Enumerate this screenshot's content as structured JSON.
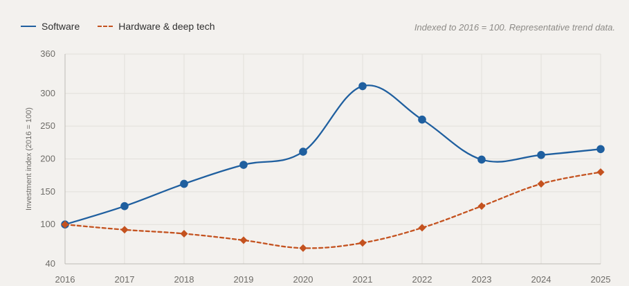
{
  "legend": {
    "software": "Software",
    "hardware": "Hardware & deep tech"
  },
  "note": "Indexed to 2016 = 100. Representative trend data.",
  "colors": {
    "software": "#1f5f9f",
    "hardware": "#c4521f",
    "grid": "#e2dfda",
    "axis": "#bdbab5"
  },
  "chart_data": {
    "type": "line",
    "x": [
      "2016",
      "2017",
      "2018",
      "2019",
      "2020",
      "2021",
      "2022",
      "2023",
      "2024",
      "2025"
    ],
    "ylabel": "Investment index (2016 = 100)",
    "ylim": [
      40,
      360
    ],
    "yticks": [
      "40",
      "100",
      "150",
      "200",
      "250",
      "300",
      "360"
    ],
    "yticks_values": [
      40,
      100,
      150,
      200,
      250,
      300,
      360
    ],
    "grid": true,
    "legend_position": "top-left",
    "series": [
      {
        "name": "Software",
        "style": "solid",
        "marker": "circle",
        "values": [
          100,
          128,
          162,
          191,
          211,
          311,
          260,
          199,
          206,
          215
        ]
      },
      {
        "name": "Hardware & deep tech",
        "style": "dashed",
        "marker": "diamond",
        "values": [
          100,
          92,
          86,
          76,
          64,
          72,
          95,
          128,
          162,
          180
        ]
      }
    ]
  }
}
